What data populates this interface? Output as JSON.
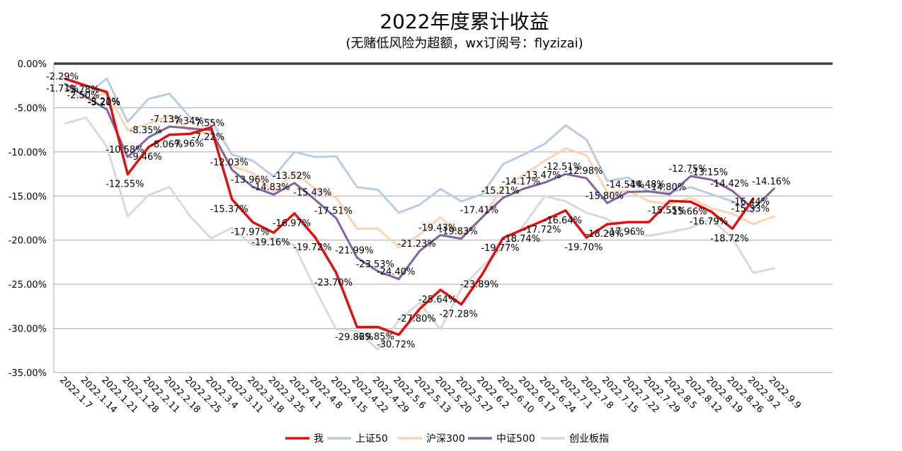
{
  "chart_data": {
    "type": "line",
    "title": "2022年度累计收益",
    "subtitle": "(无赌低风险为超额，wx订阅号：flyzizai)",
    "ylim": [
      -35,
      0
    ],
    "yticks": [
      0,
      -5,
      -10,
      -15,
      -20,
      -25,
      -30,
      -35
    ],
    "ytick_labels": [
      "0.00%",
      "-5.00%",
      "-10.00%",
      "-15.00%",
      "-20.00%",
      "-25.00%",
      "-30.00%",
      "-35.00%"
    ],
    "categories": [
      "2022.1.7",
      "2022.1.14",
      "2022.1.21",
      "2022.1.28",
      "2022.2.11",
      "2022.2.18",
      "2022.2.25",
      "2022.3.4",
      "2022.3.11",
      "2022.3.18",
      "2022.3.25",
      "2022.4.1",
      "2022.4.8",
      "2022.4.15",
      "2022.4.22",
      "2022.4.29",
      "2022.5.6",
      "2022.5.13",
      "2022.5.20",
      "2022.5.27",
      "2022.6.2",
      "2022.6.10",
      "2022.6.17",
      "2022.6.24",
      "2022.7.1",
      "2022.7.8",
      "2022.7.15",
      "2022.7.22",
      "2022.7.29",
      "2022.8.5",
      "2022.8.12",
      "2022.8.19",
      "2022.8.26",
      "2022.9.2",
      "2022.9.9"
    ],
    "series": [
      {
        "name": "我",
        "color": "#e01010",
        "values": [
          -1.71,
          -2.5,
          -3.22,
          -12.55,
          -9.46,
          -8.06,
          -7.96,
          -7.22,
          -15.37,
          -17.97,
          -19.16,
          -16.97,
          -19.72,
          -23.7,
          -29.86,
          -29.85,
          -30.72,
          -27.8,
          -25.64,
          -27.28,
          -23.89,
          -19.77,
          -18.74,
          -17.72,
          -16.64,
          -19.7,
          -18.2,
          -17.96,
          -17.96,
          -15.55,
          -15.66,
          -16.79,
          -18.72,
          -15.33,
          null
        ],
        "labels": [
          "-1.71%",
          "-2.50%",
          "-3.22%",
          "-12.55%",
          "-9.46%",
          "-8.06%",
          "-7.96%",
          "-7.22%",
          "-15.37%",
          "-17.97%",
          "-19.16%",
          "-16.97%",
          "-19.72%",
          "-23.70%",
          "-29.86%",
          "-29.85%",
          "-30.72%",
          "-27.80%",
          "-25.64%",
          "-27.28%",
          "-23.89%",
          "-19.77%",
          "-18.74%",
          "-17.72%",
          "-16.64%",
          "-19.70%",
          "-18.20%",
          "-17.96%",
          "",
          "-15.55%",
          "-15.66%",
          "-16.79%",
          "-18.72%",
          "-15.33%",
          ""
        ]
      },
      {
        "name": "上证50",
        "color": "#b8cce4",
        "values": [
          -2.8,
          -3.5,
          -1.7,
          -6.6,
          -4.0,
          -3.4,
          -6.1,
          -6.4,
          -10.3,
          -11.0,
          -12.8,
          -10.0,
          -10.6,
          -10.5,
          -14.0,
          -14.3,
          -16.9,
          -16.0,
          -14.2,
          -15.6,
          -14.8,
          -11.4,
          -10.3,
          -9.1,
          -7.0,
          -8.6,
          -13.3,
          -12.9,
          -14.5,
          -14.6,
          -14.0,
          -14.8,
          -15.6,
          -16.9,
          null
        ],
        "labels": []
      },
      {
        "name": "沪深300",
        "color": "#fbd4b4",
        "values": [
          -3.0,
          -4.0,
          -3.3,
          -7.5,
          -6.8,
          -5.9,
          -7.6,
          -8.0,
          -11.6,
          -12.4,
          -14.5,
          -12.3,
          -14.2,
          -15.2,
          -18.7,
          -18.7,
          -20.8,
          -19.4,
          -17.4,
          -19.4,
          -17.5,
          -14.0,
          -12.6,
          -11.0,
          -9.6,
          -10.4,
          -14.6,
          -14.4,
          -15.6,
          -15.9,
          -15.2,
          -16.4,
          -17.0,
          -18.2,
          -17.3
        ],
        "labels": []
      },
      {
        "name": "中证500",
        "color": "#8064a2",
        "values": [
          -2.3,
          -3.78,
          -5.2,
          -10.58,
          -8.35,
          -7.13,
          -7.34,
          -7.55,
          -12.03,
          -13.96,
          -14.83,
          -13.52,
          -15.43,
          -17.51,
          -21.99,
          -23.53,
          -24.4,
          -21.23,
          -19.43,
          -19.83,
          -17.41,
          -15.21,
          -14.17,
          -13.47,
          -12.51,
          -12.98,
          -15.8,
          -14.54,
          -14.48,
          -14.8,
          -12.75,
          -13.15,
          -14.42,
          -16.44,
          -14.16
        ],
        "labels": [
          "-2.29%",
          "-3.78%",
          "-5.20%",
          "-10.58%",
          "-8.35%",
          "-7.13%",
          "-7.34%",
          "-7.55%",
          "-12.03%",
          "-13.96%",
          "-14.83%",
          "-13.52%",
          "-15.43%",
          "-17.51%",
          "-21.99%",
          "-23.53%",
          "-24.40%",
          "-21.23%",
          "-19.43%",
          "-19.83%",
          "-17.41%",
          "-15.21%",
          "-14.17%",
          "-13.47%",
          "-12.51%",
          "-12.98%",
          "-15.80%",
          "-14.54%",
          "-14.48%",
          "-14.80%",
          "-12.75%",
          "-13.15%",
          "-14.42%",
          "-16.44%",
          "-14.16%"
        ]
      },
      {
        "name": "创业板指",
        "color": "#d9d9d9",
        "values": [
          -6.8,
          -6.1,
          -9.4,
          -17.3,
          -14.9,
          -14.0,
          -17.3,
          -19.8,
          -18.6,
          -20.6,
          -19.7,
          -20.6,
          -25.6,
          -30.1,
          -30.3,
          -32.4,
          -29.1,
          -27.1,
          -30.1,
          -25.5,
          -23.0,
          -20.8,
          -18.3,
          -15.0,
          -15.6,
          -16.9,
          -17.6,
          -19.2,
          -19.5,
          -19.1,
          -18.6,
          -17.6,
          -19.8,
          -23.7,
          -23.2
        ],
        "labels": []
      }
    ],
    "legend_position": "bottom",
    "grid": true
  }
}
